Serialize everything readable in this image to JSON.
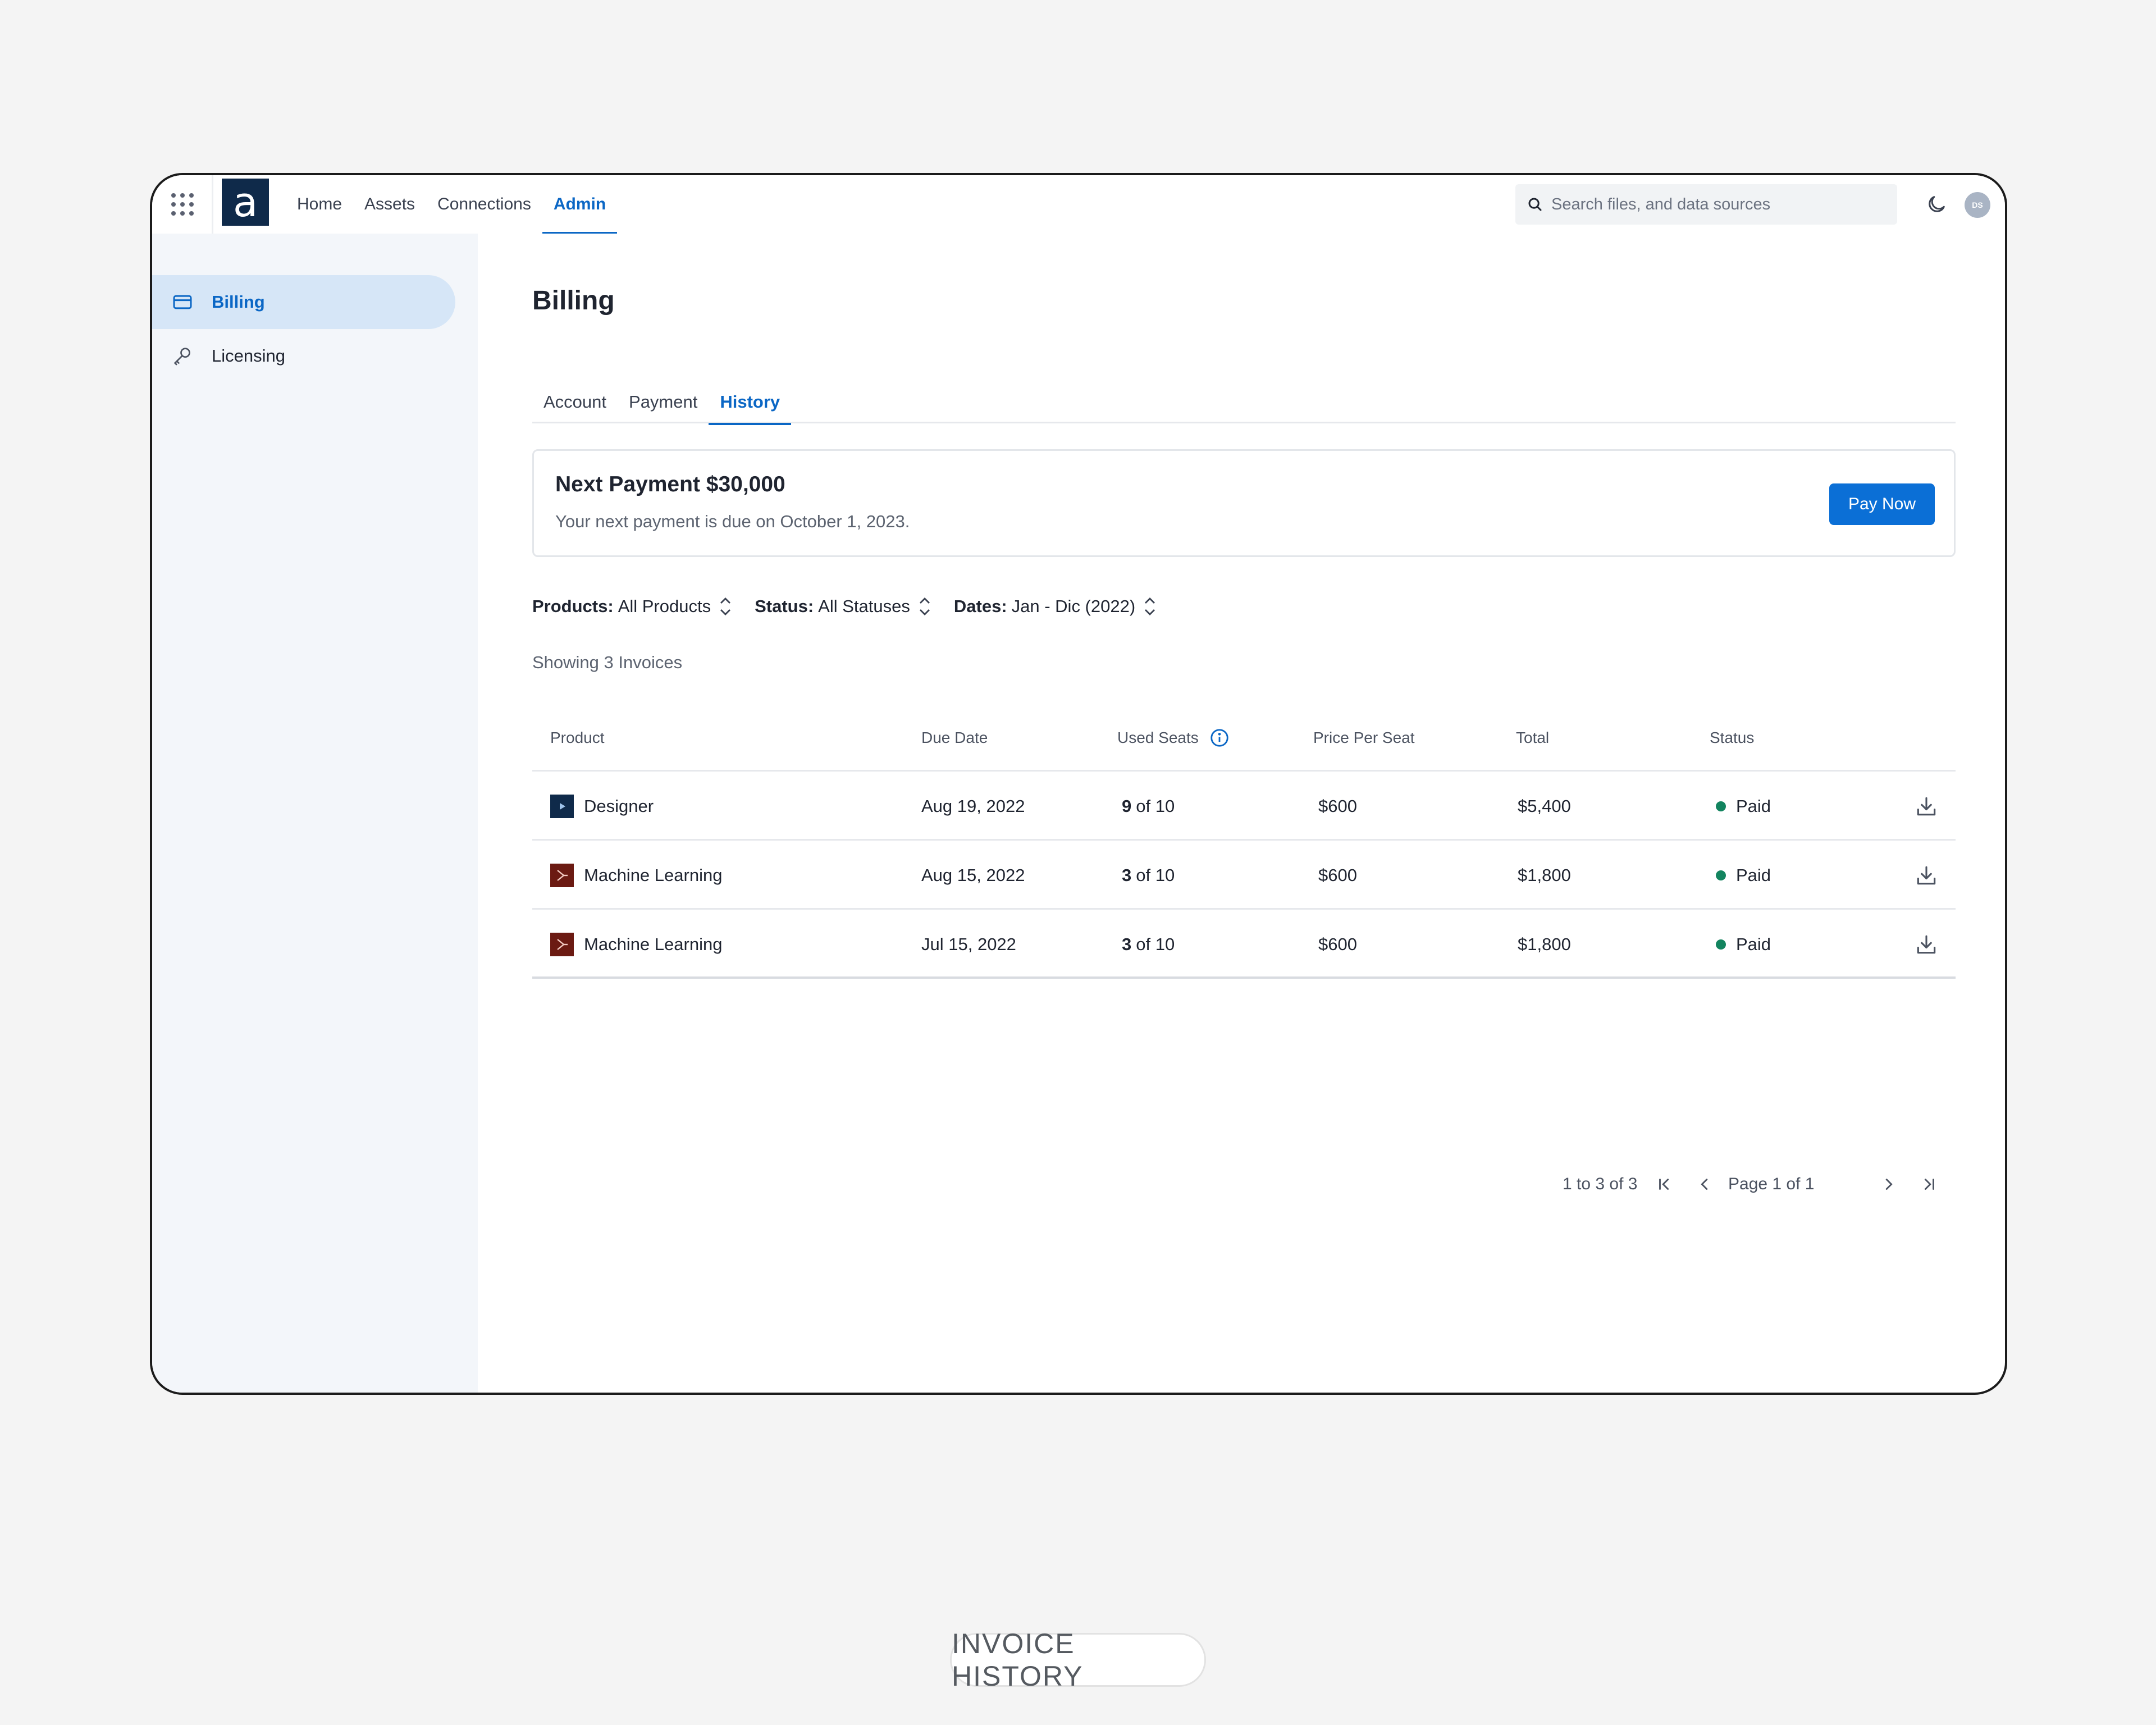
{
  "nav": {
    "items": [
      {
        "label": "Home"
      },
      {
        "label": "Assets"
      },
      {
        "label": "Connections"
      },
      {
        "label": "Admin"
      }
    ],
    "active": "Admin",
    "logo_letter": "a"
  },
  "search": {
    "placeholder": "Search files, and data sources"
  },
  "user": {
    "initials": "DS"
  },
  "sidebar": {
    "items": [
      {
        "label": "Billing",
        "icon": "credit-card-icon"
      },
      {
        "label": "Licensing",
        "icon": "key-icon"
      }
    ],
    "active": "Billing"
  },
  "page": {
    "title": "Billing"
  },
  "tabs": [
    {
      "label": "Account"
    },
    {
      "label": "Payment"
    },
    {
      "label": "History"
    }
  ],
  "active_tab": "History",
  "next_payment": {
    "title": "Next Payment $30,000",
    "subtitle": "Your next payment is due on October 1, 2023.",
    "button": "Pay Now"
  },
  "filters": [
    {
      "key": "Products:",
      "value": "All Products"
    },
    {
      "key": "Status:",
      "value": "All Statuses"
    },
    {
      "key": "Dates:",
      "value": "Jan - Dic (2022)"
    }
  ],
  "showing": "Showing 3 Invoices",
  "table": {
    "columns": [
      "Product",
      "Due Date",
      "Used Seats",
      "Price Per Seat",
      "Total",
      "Status"
    ],
    "rows": [
      {
        "product": "Designer",
        "icon": "designer-icon",
        "due": "Aug 19, 2022",
        "seats_used": "9",
        "seats_total": "of 10",
        "price": "$600",
        "total": "$5,400",
        "status": "Paid"
      },
      {
        "product": "Machine Learning",
        "icon": "machine-learning-icon",
        "due": "Aug 15, 2022",
        "seats_used": "3",
        "seats_total": "of 10",
        "price": "$600",
        "total": "$1,800",
        "status": "Paid"
      },
      {
        "product": "Machine Learning",
        "icon": "machine-learning-icon",
        "due": "Jul 15, 2022",
        "seats_used": "3",
        "seats_total": "of 10",
        "price": "$600",
        "total": "$1,800",
        "status": "Paid"
      }
    ]
  },
  "pagination": {
    "range": "1 to 3 of 3",
    "page": "Page 1 of 1"
  },
  "caption": "INVOICE HISTORY",
  "colors": {
    "accent": "#0b67c5",
    "paid": "#13845f",
    "designer_icon_bg": "#0f2a4a",
    "ml_icon_bg": "#6b1a12"
  }
}
